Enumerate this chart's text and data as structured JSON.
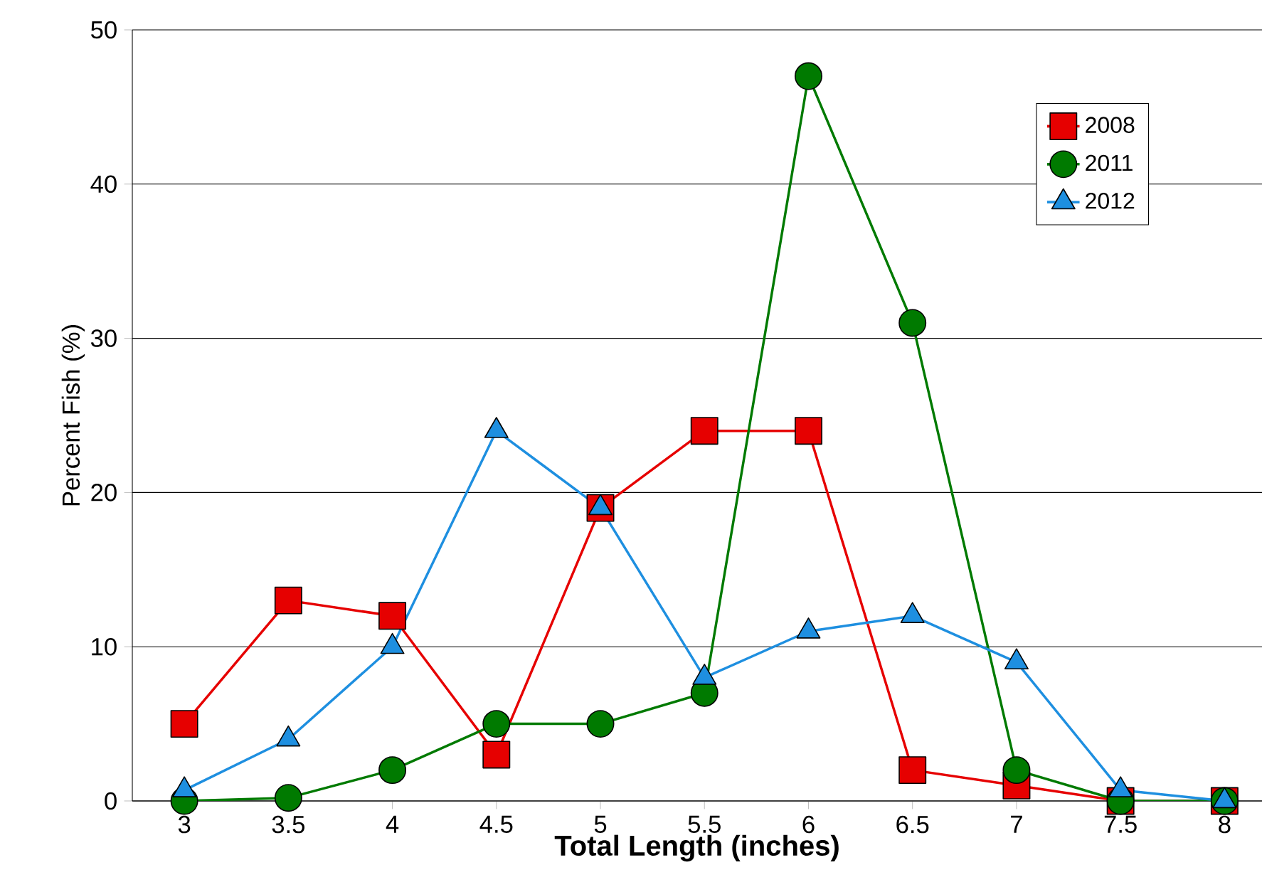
{
  "chart_data": {
    "type": "line",
    "xlabel": "Total Length (inches)",
    "ylabel": "Percent Fish (%)",
    "x": [
      3,
      3.5,
      4,
      4.5,
      5,
      5.5,
      6,
      6.5,
      7,
      7.5,
      8
    ],
    "series": [
      {
        "name": "2008",
        "color": "#e60000",
        "marker": "square",
        "values": [
          5,
          13,
          12,
          3,
          19,
          24,
          24,
          2,
          1,
          0,
          0
        ]
      },
      {
        "name": "2011",
        "color": "#007a00",
        "marker": "circle",
        "values": [
          0,
          0.2,
          2,
          5,
          5,
          7,
          47,
          31,
          2,
          0,
          0
        ]
      },
      {
        "name": "2012",
        "color": "#1e8fe0",
        "marker": "triangle",
        "values": [
          0.7,
          4,
          10,
          24,
          19,
          8,
          11,
          12,
          9,
          0.7,
          0
        ]
      }
    ],
    "xlim": [
      2.75,
      8.18
    ],
    "ylim": [
      0,
      50
    ],
    "xticks": [
      3,
      3.5,
      4,
      4.5,
      5,
      5.5,
      6,
      6.5,
      7,
      7.5,
      8
    ],
    "yticks": [
      0,
      10,
      20,
      30,
      40,
      50
    ],
    "grid": "y",
    "legend": "top right",
    "line_style": "solid"
  }
}
